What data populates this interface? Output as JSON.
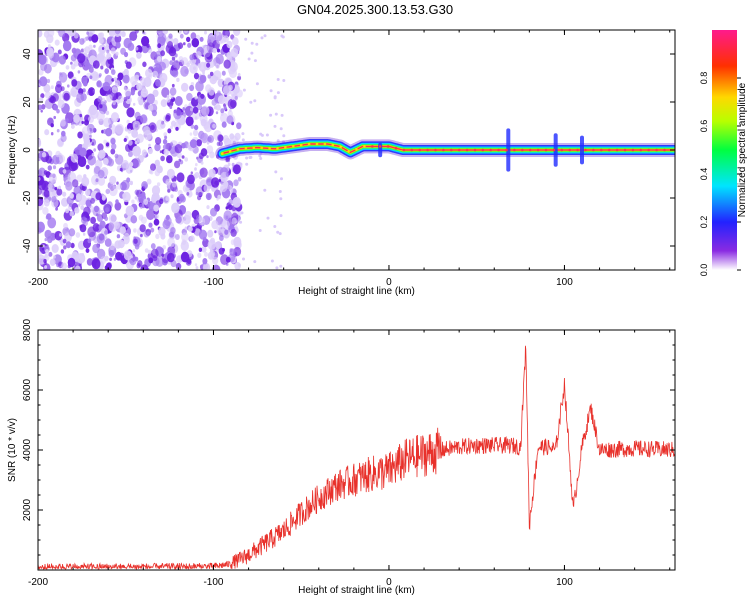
{
  "title": "GN04.2025.300.13.53.G30",
  "chart_data": [
    {
      "type": "heatmap",
      "name": "spectrogram",
      "xlabel": "Height of straight line (km)",
      "ylabel": "Frequency (Hz)",
      "xlim": [
        -200,
        163
      ],
      "ylim": [
        -50,
        50
      ],
      "xticks": [
        -200,
        -100,
        0,
        100
      ],
      "yticks": [
        -40,
        -20,
        0,
        20,
        40
      ],
      "ridge": [
        {
          "x": -95,
          "y": -1.5
        },
        {
          "x": -85,
          "y": 0.5
        },
        {
          "x": -75,
          "y": 1.0
        },
        {
          "x": -65,
          "y": 0.5
        },
        {
          "x": -55,
          "y": 1.5
        },
        {
          "x": -45,
          "y": 2.5
        },
        {
          "x": -35,
          "y": 2.5
        },
        {
          "x": -28,
          "y": 1.5
        },
        {
          "x": -22,
          "y": -1.0
        },
        {
          "x": -15,
          "y": 1.5
        },
        {
          "x": 0,
          "y": 1.5
        },
        {
          "x": 8,
          "y": 0.0
        },
        {
          "x": 40,
          "y": 0.0
        },
        {
          "x": 100,
          "y": 0.0
        },
        {
          "x": 163,
          "y": 0.0
        }
      ],
      "noise_region_x": [
        -200,
        -85
      ],
      "colorbar": {
        "label": "Normalized spectral amplitude",
        "range": [
          0,
          1
        ],
        "ticks": [
          0.0,
          0.2,
          0.4,
          0.6,
          0.8
        ],
        "tick_labels": [
          "0.0",
          "0.2",
          "0.4",
          "0.6",
          "0.8"
        ]
      }
    },
    {
      "type": "line",
      "name": "snr",
      "xlabel": "Height of straight line (km)",
      "ylabel": "SNR (10 * v/v)",
      "xlim": [
        -200,
        163
      ],
      "ylim": [
        0,
        8000
      ],
      "xticks": [
        -200,
        -100,
        0,
        100
      ],
      "yticks": [
        2000,
        4000,
        6000,
        8000
      ],
      "series": [
        {
          "name": "SNR",
          "color": "#e8312b",
          "x": [
            -200,
            -150,
            -100,
            -90,
            -80,
            -70,
            -60,
            -50,
            -40,
            -30,
            -20,
            -10,
            0,
            10,
            20,
            30,
            40,
            50,
            60,
            70,
            75,
            78,
            80,
            85,
            90,
            95,
            100,
            105,
            110,
            115,
            120,
            140,
            163
          ],
          "y": [
            100,
            100,
            120,
            200,
            500,
            900,
            1300,
            1900,
            2400,
            2800,
            3000,
            3200,
            3300,
            3700,
            3850,
            4000,
            4100,
            4150,
            4150,
            4150,
            4100,
            7500,
            1500,
            4100,
            4100,
            4000,
            6200,
            2000,
            4100,
            5400,
            4000,
            4050,
            4000
          ]
        }
      ]
    }
  ]
}
